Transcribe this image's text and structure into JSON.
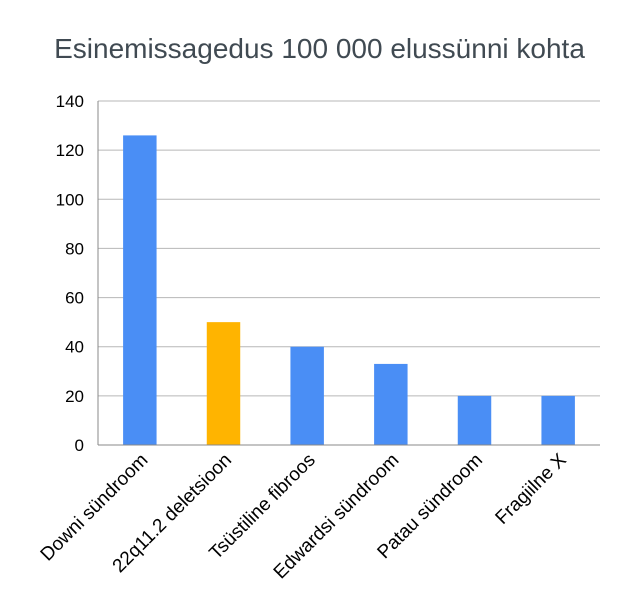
{
  "chart_data": {
    "type": "bar",
    "title": "Esinemissagedus 100 000 elussünni kohta",
    "categories": [
      "Downi sündroom",
      "22q11.2 deletsioon",
      "Tsüstiline fibroos",
      "Edwardsi sündroom",
      "Patau sündroom",
      "Fragiilne X"
    ],
    "values": [
      126,
      50,
      40,
      33,
      20,
      20
    ],
    "highlight_index": 1,
    "colors": {
      "bar": "#4a8ef5",
      "highlight": "#ffb400",
      "grid": "#b7b7b7",
      "axis": "#888888"
    },
    "xlabel": "",
    "ylabel": "",
    "ylim": [
      0,
      140
    ],
    "yticks": [
      0,
      20,
      40,
      60,
      80,
      100,
      120,
      140
    ],
    "grid": true,
    "legend": "none"
  }
}
